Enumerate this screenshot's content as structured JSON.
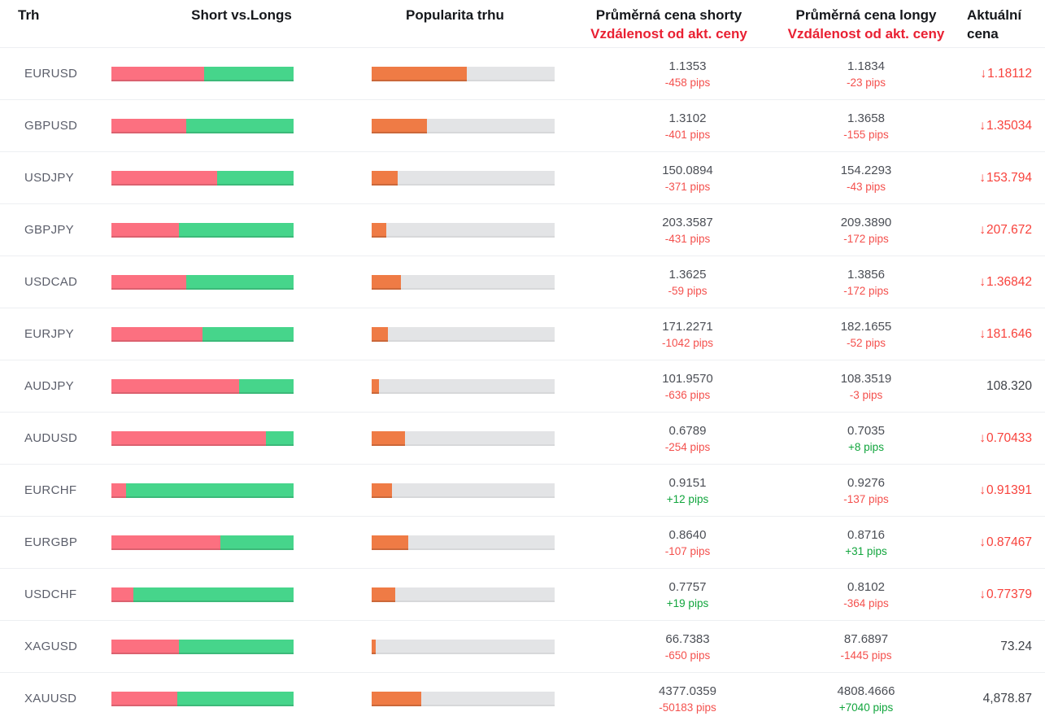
{
  "header": {
    "market": "Trh",
    "short_vs_longs": "Short vs.Longs",
    "popularity": "Popularita trhu",
    "avg_short_line1": "Průměrná cena shorty",
    "avg_short_line2": "Vzdálenost od akt. ceny",
    "avg_long_line1": "Průměrná cena longy",
    "avg_long_line2": "Vzdálenost od akt. ceny",
    "current_line1": "Aktuální",
    "current_line2": "cena"
  },
  "colors": {
    "short_red": "#fc7080",
    "long_green": "#46d58b",
    "popularity_orange": "#ef7b45",
    "track_gray": "#e3e4e6",
    "negative_red": "#f4504d",
    "positive_green": "#11a53d",
    "header_red": "#e92032",
    "price_down_red": "#f8423c"
  },
  "icons": {
    "down_arrow": "↓"
  },
  "rows": [
    {
      "market": "EURUSD",
      "short_pct": 51,
      "popularity_pct": 52,
      "avg_short": {
        "price": "1.1353",
        "pips": "-458 pips",
        "tone": "neg"
      },
      "avg_long": {
        "price": "1.1834",
        "pips": "-23 pips",
        "tone": "neg"
      },
      "current": {
        "value": "1.18112",
        "arrow": true,
        "tone": "red"
      }
    },
    {
      "market": "GBPUSD",
      "short_pct": 41,
      "popularity_pct": 30,
      "avg_short": {
        "price": "1.3102",
        "pips": "-401 pips",
        "tone": "neg"
      },
      "avg_long": {
        "price": "1.3658",
        "pips": "-155 pips",
        "tone": "neg"
      },
      "current": {
        "value": "1.35034",
        "arrow": true,
        "tone": "red"
      }
    },
    {
      "market": "USDJPY",
      "short_pct": 58,
      "popularity_pct": 14,
      "avg_short": {
        "price": "150.0894",
        "pips": "-371 pips",
        "tone": "neg"
      },
      "avg_long": {
        "price": "154.2293",
        "pips": "-43 pips",
        "tone": "neg"
      },
      "current": {
        "value": "153.794",
        "arrow": true,
        "tone": "red"
      }
    },
    {
      "market": "GBPJPY",
      "short_pct": 37,
      "popularity_pct": 8,
      "avg_short": {
        "price": "203.3587",
        "pips": "-431 pips",
        "tone": "neg"
      },
      "avg_long": {
        "price": "209.3890",
        "pips": "-172 pips",
        "tone": "neg"
      },
      "current": {
        "value": "207.672",
        "arrow": true,
        "tone": "red"
      }
    },
    {
      "market": "USDCAD",
      "short_pct": 41,
      "popularity_pct": 16,
      "avg_short": {
        "price": "1.3625",
        "pips": "-59 pips",
        "tone": "neg"
      },
      "avg_long": {
        "price": "1.3856",
        "pips": "-172 pips",
        "tone": "neg"
      },
      "current": {
        "value": "1.36842",
        "arrow": true,
        "tone": "red"
      }
    },
    {
      "market": "EURJPY",
      "short_pct": 50,
      "popularity_pct": 9,
      "avg_short": {
        "price": "171.2271",
        "pips": "-1042 pips",
        "tone": "neg"
      },
      "avg_long": {
        "price": "182.1655",
        "pips": "-52 pips",
        "tone": "neg"
      },
      "current": {
        "value": "181.646",
        "arrow": true,
        "tone": "red"
      }
    },
    {
      "market": "AUDJPY",
      "short_pct": 70,
      "popularity_pct": 4,
      "avg_short": {
        "price": "101.9570",
        "pips": "-636 pips",
        "tone": "neg"
      },
      "avg_long": {
        "price": "108.3519",
        "pips": "-3 pips",
        "tone": "neg"
      },
      "current": {
        "value": "108.320",
        "arrow": false,
        "tone": "dark"
      }
    },
    {
      "market": "AUDUSD",
      "short_pct": 85,
      "popularity_pct": 18,
      "avg_short": {
        "price": "0.6789",
        "pips": "-254 pips",
        "tone": "neg"
      },
      "avg_long": {
        "price": "0.7035",
        "pips": "+8 pips",
        "tone": "pos"
      },
      "current": {
        "value": "0.70433",
        "arrow": true,
        "tone": "red"
      }
    },
    {
      "market": "EURCHF",
      "short_pct": 8,
      "popularity_pct": 11,
      "avg_short": {
        "price": "0.9151",
        "pips": "+12 pips",
        "tone": "pos"
      },
      "avg_long": {
        "price": "0.9276",
        "pips": "-137 pips",
        "tone": "neg"
      },
      "current": {
        "value": "0.91391",
        "arrow": true,
        "tone": "red"
      }
    },
    {
      "market": "EURGBP",
      "short_pct": 60,
      "popularity_pct": 20,
      "avg_short": {
        "price": "0.8640",
        "pips": "-107 pips",
        "tone": "neg"
      },
      "avg_long": {
        "price": "0.8716",
        "pips": "+31 pips",
        "tone": "pos"
      },
      "current": {
        "value": "0.87467",
        "arrow": true,
        "tone": "red"
      }
    },
    {
      "market": "USDCHF",
      "short_pct": 12,
      "popularity_pct": 13,
      "avg_short": {
        "price": "0.7757",
        "pips": "+19 pips",
        "tone": "pos"
      },
      "avg_long": {
        "price": "0.8102",
        "pips": "-364 pips",
        "tone": "neg"
      },
      "current": {
        "value": "0.77379",
        "arrow": true,
        "tone": "red"
      }
    },
    {
      "market": "XAGUSD",
      "short_pct": 37,
      "popularity_pct": 2,
      "avg_short": {
        "price": "66.7383",
        "pips": "-650 pips",
        "tone": "neg"
      },
      "avg_long": {
        "price": "87.6897",
        "pips": "-1445 pips",
        "tone": "neg"
      },
      "current": {
        "value": "73.24",
        "arrow": false,
        "tone": "dark"
      }
    },
    {
      "market": "XAUUSD",
      "short_pct": 36,
      "popularity_pct": 27,
      "avg_short": {
        "price": "4377.0359",
        "pips": "-50183 pips",
        "tone": "neg"
      },
      "avg_long": {
        "price": "4808.4666",
        "pips": "+7040 pips",
        "tone": "pos"
      },
      "current": {
        "value": "4,878.87",
        "arrow": false,
        "tone": "dark"
      }
    }
  ]
}
